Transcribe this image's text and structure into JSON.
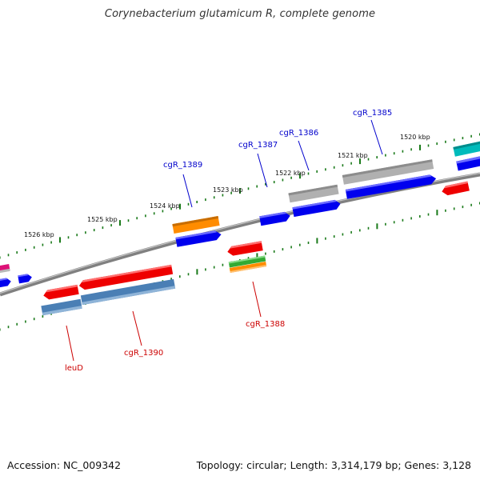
{
  "title": "Corynebacterium glutamicum R, complete genome",
  "footer": {
    "accession": "Accession: NC_009342",
    "topology": "Topology: circular; Length: 3,314,179 bp; Genes: 3,128"
  },
  "ruler": [
    "1526 kbp",
    "1525 kbp",
    "1524 kbp",
    "1523 kbp",
    "1522 kbp",
    "1521 kbp",
    "1520 kbp"
  ],
  "labels": {
    "forward": [
      "cgR_1389",
      "cgR_1387",
      "cgR_1386",
      "cgR_1385"
    ],
    "reverse": [
      "leuD",
      "cgR_1390",
      "cgR_1388"
    ]
  },
  "colors": {
    "forward_label": "#0000cc",
    "reverse_label": "#cc0000",
    "tick": "#1a7a1a",
    "backbone": "#808080",
    "cds_blue": "#0000ee",
    "cds_red": "#ee0000",
    "cds_grey": "#b0b0b0",
    "cds_orange": "#ff8c00",
    "cds_steel": "#4a7fb5",
    "cds_green": "#33aa33",
    "cds_cyan": "#00bbbb",
    "cds_magenta": "#dd1177"
  }
}
